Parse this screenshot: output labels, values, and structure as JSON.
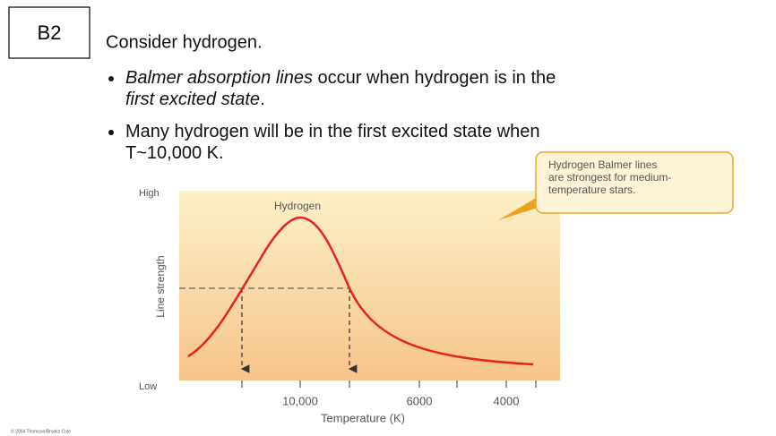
{
  "slide_label": "B2",
  "title": "Consider hydrogen.",
  "bullets": [
    {
      "lines": [
        [
          {
            "text": "Balmer absorption lines",
            "italic": true
          },
          {
            "text": " occur when hydrogen is in the",
            "italic": false
          }
        ],
        [
          {
            "text": "first excited state",
            "italic": true
          },
          {
            "text": ".",
            "italic": false
          }
        ]
      ]
    },
    {
      "lines": [
        [
          {
            "text": "Many hydrogen will be in the first excited state when",
            "italic": false
          }
        ],
        [
          {
            "text": "T~10,000 K.",
            "italic": false
          }
        ]
      ]
    }
  ],
  "figure": {
    "y_high": "High",
    "y_low": "Low",
    "y_label": "Line strength",
    "curve_label": "Hydrogen",
    "x_ticks": [
      "10,000",
      "6000",
      "4000"
    ],
    "x_label": "Temperature (K)",
    "callout": [
      "Hydrogen Balmer lines",
      "are strongest for medium-",
      "temperature stars."
    ],
    "credit": "© 2004 Thomson/Brooks Cole"
  }
}
